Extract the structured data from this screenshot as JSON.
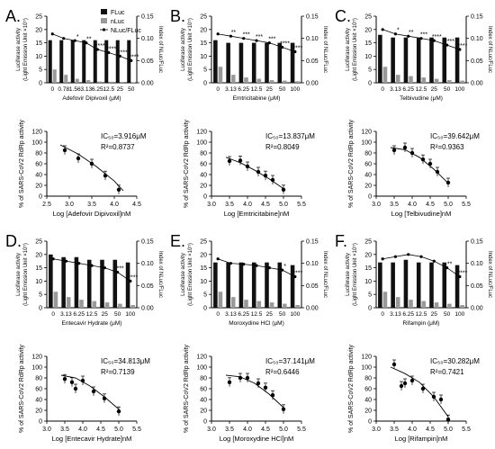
{
  "figure": {
    "legend": {
      "items": [
        "FLuc",
        "nLuc",
        "NLuc/FLuc"
      ]
    },
    "bar_axis_left_label": [
      "Luciferase activity",
      "(Light Emission Unit ×10⁵)"
    ],
    "bar_axis_right_label": "Index of NLuc/FLuc"
  },
  "panels": [
    {
      "letter": "A.",
      "xlabel_top": "Adefovir Dipivoxil (μM)",
      "concentrations": [
        "0",
        "0.78",
        "1.56",
        "3.13",
        "6.25",
        "12.5",
        "25",
        "50"
      ],
      "fluc": [
        16,
        16,
        16,
        16,
        16,
        16,
        16,
        16
      ],
      "nluc": [
        5,
        3,
        1.5,
        1,
        0.5,
        0.4,
        0.3,
        0.2
      ],
      "ratio": [
        0.11,
        0.1,
        0.095,
        0.09,
        0.075,
        0.068,
        0.06,
        0.05
      ],
      "sig": [
        "",
        "",
        "*",
        "**",
        "****",
        "****",
        "****",
        "****"
      ],
      "ic50": "IC₅₀=3.916μM",
      "r2": "R²=0.8737",
      "ylabel": "% of SARS-CoV2 RdRp activity",
      "xlabel": "Log [Adefovir Dipivoxil]nM",
      "xticks": [
        "2.5",
        "3.0",
        "3.5",
        "4.0",
        "4.5"
      ],
      "xlim": [
        2.5,
        4.5
      ],
      "points": [
        [
          2.9,
          85
        ],
        [
          3.2,
          70
        ],
        [
          3.5,
          60
        ],
        [
          3.8,
          38
        ],
        [
          4.1,
          12
        ]
      ],
      "curve": [
        [
          2.8,
          95
        ],
        [
          3.2,
          78
        ],
        [
          3.6,
          55
        ],
        [
          4.0,
          28
        ],
        [
          4.2,
          10
        ]
      ]
    },
    {
      "letter": "B.",
      "xlabel_top": "Emtricitabine (μM)",
      "concentrations": [
        "0",
        "3.13",
        "6.25",
        "12.5",
        "25",
        "50",
        "100"
      ],
      "fluc": [
        16,
        15,
        15,
        15,
        15,
        15,
        15
      ],
      "nluc": [
        6,
        3,
        2,
        1.5,
        1,
        0.8,
        0.6
      ],
      "ratio": [
        0.11,
        0.105,
        0.1,
        0.095,
        0.09,
        0.08,
        0.07
      ],
      "sig": [
        "",
        "**",
        "***",
        "***",
        "***",
        "****",
        "****"
      ],
      "ic50": "IC₅₀=13.837μM",
      "r2": "R²=0.8049",
      "ylabel": "% of SARS-CoV2 RdRp activity",
      "xlabel": "Log [Emtricitabine]nM",
      "xticks": [
        "3.0",
        "3.5",
        "4.0",
        "4.5",
        "5.0",
        "5.5"
      ],
      "xlim": [
        3.0,
        5.5
      ],
      "points": [
        [
          3.5,
          65
        ],
        [
          3.8,
          66
        ],
        [
          4.0,
          55
        ],
        [
          4.3,
          45
        ],
        [
          4.5,
          38
        ],
        [
          4.7,
          30
        ],
        [
          5.0,
          12
        ]
      ],
      "curve": [
        [
          3.4,
          72
        ],
        [
          3.8,
          62
        ],
        [
          4.2,
          48
        ],
        [
          4.6,
          32
        ],
        [
          5.0,
          14
        ]
      ]
    },
    {
      "letter": "C.",
      "xlabel_top": "Telbivudine (μM)",
      "concentrations": [
        "0",
        "3.13",
        "6.25",
        "12.5",
        "25",
        "50",
        "100"
      ],
      "fluc": [
        18,
        17,
        17,
        17,
        17,
        17,
        17
      ],
      "nluc": [
        6,
        3,
        2.5,
        2,
        1.5,
        1,
        0.8
      ],
      "ratio": [
        0.12,
        0.11,
        0.105,
        0.1,
        0.095,
        0.085,
        0.075
      ],
      "sig": [
        "",
        "*",
        "**",
        "***",
        "****",
        "****",
        "****"
      ],
      "ic50": "IC₅₀=39.642μM",
      "r2": "R²=0.9363",
      "ylabel": "% of SARS-CoV2 RdRp activity",
      "xlabel": "Log [Telbivudine]nM",
      "xticks": [
        "3.0",
        "3.5",
        "4.0",
        "4.5",
        "5.0",
        "5.5"
      ],
      "xlim": [
        3.0,
        5.5
      ],
      "points": [
        [
          3.5,
          85
        ],
        [
          3.8,
          90
        ],
        [
          4.0,
          80
        ],
        [
          4.3,
          68
        ],
        [
          4.5,
          60
        ],
        [
          4.7,
          45
        ],
        [
          5.0,
          25
        ]
      ],
      "curve": [
        [
          3.4,
          90
        ],
        [
          3.8,
          86
        ],
        [
          4.2,
          72
        ],
        [
          4.6,
          50
        ],
        [
          5.0,
          24
        ]
      ]
    },
    {
      "letter": "D.",
      "xlabel_top": "Entecavir Hydrate (μM)",
      "concentrations": [
        "0",
        "3.13",
        "6.25",
        "12.5",
        "25",
        "50",
        "100"
      ],
      "fluc": [
        20,
        19,
        19,
        18,
        18,
        18,
        17
      ],
      "nluc": [
        6,
        4,
        3,
        2.5,
        2,
        1.5,
        1
      ],
      "ratio": [
        0.11,
        0.105,
        0.1,
        0.095,
        0.09,
        0.08,
        0.06
      ],
      "sig": [
        "",
        "",
        "",
        "",
        "",
        "***",
        "****"
      ],
      "ic50": "IC₅₀=34.813μM",
      "r2": "R²=0.7139",
      "ylabel": "% of SARS-CoV2 RdRp activity",
      "xlabel": "Log [Entecavir Hydrate]nM",
      "xticks": [
        "3.0",
        "3.5",
        "4.0",
        "4.5",
        "5.0",
        "5.5"
      ],
      "xlim": [
        3.0,
        5.5
      ],
      "points": [
        [
          3.5,
          78
        ],
        [
          3.7,
          72
        ],
        [
          3.8,
          60
        ],
        [
          4.0,
          75
        ],
        [
          4.3,
          55
        ],
        [
          4.6,
          42
        ],
        [
          5.0,
          18
        ]
      ],
      "curve": [
        [
          3.4,
          85
        ],
        [
          3.8,
          80
        ],
        [
          4.2,
          65
        ],
        [
          4.6,
          45
        ],
        [
          5.0,
          22
        ]
      ]
    },
    {
      "letter": "E.",
      "xlabel_top": "Moroxydine HCl (μM)",
      "concentrations": [
        "0",
        "3.13",
        "6.25",
        "12.5",
        "25",
        "50",
        "100"
      ],
      "fluc": [
        17,
        17,
        17,
        17,
        17,
        17,
        16
      ],
      "nluc": [
        6,
        4,
        3,
        2.5,
        2,
        1.5,
        1
      ],
      "ratio": [
        0.11,
        0.1,
        0.098,
        0.095,
        0.09,
        0.085,
        0.07
      ],
      "sig": [
        "",
        "",
        "",
        "",
        "",
        "*",
        "****"
      ],
      "ic50": "IC₅₀=37.141μM",
      "r2": "R²=0.6446",
      "ylabel": "% of SARS-CoV2 RdRp activity",
      "xlabel": "Log [Moroxydine HCl]nM",
      "xticks": [
        "3.0",
        "3.5",
        "4.0",
        "4.5",
        "5.0",
        "5.5"
      ],
      "xlim": [
        3.0,
        5.5
      ],
      "points": [
        [
          3.5,
          72
        ],
        [
          3.8,
          80
        ],
        [
          4.0,
          80
        ],
        [
          4.3,
          70
        ],
        [
          4.5,
          62
        ],
        [
          4.7,
          48
        ],
        [
          5.0,
          22
        ]
      ],
      "curve": [
        [
          3.4,
          85
        ],
        [
          3.8,
          82
        ],
        [
          4.2,
          70
        ],
        [
          4.6,
          50
        ],
        [
          5.0,
          25
        ]
      ]
    },
    {
      "letter": "F.",
      "xlabel_top": "Rifampin (μM)",
      "concentrations": [
        "0",
        "3.13",
        "6.25",
        "12.5",
        "25",
        "50",
        "100"
      ],
      "fluc": [
        17,
        17,
        18,
        17,
        17,
        17,
        16
      ],
      "nluc": [
        6,
        4,
        3,
        2.5,
        2,
        1.5,
        1
      ],
      "ratio": [
        0.11,
        0.115,
        0.12,
        0.115,
        0.105,
        0.09,
        0.07
      ],
      "sig": [
        "",
        "",
        "",
        "",
        "",
        "**",
        "****"
      ],
      "ic50": "IC₅₀=30.282μM",
      "r2": "R²=0.7421",
      "ylabel": "% of SARS-CoV2 RdRp activity",
      "xlabel": "Log [Rifampin]nM",
      "xticks": [
        "3.0",
        "3.5",
        "4.0",
        "4.5",
        "5.0",
        "5.5"
      ],
      "xlim": [
        3.0,
        5.5
      ],
      "points": [
        [
          3.5,
          105
        ],
        [
          3.7,
          65
        ],
        [
          3.8,
          70
        ],
        [
          4.0,
          75
        ],
        [
          4.3,
          60
        ],
        [
          4.6,
          45
        ],
        [
          4.8,
          40
        ],
        [
          5.0,
          3
        ]
      ],
      "curve": [
        [
          3.4,
          100
        ],
        [
          3.8,
          88
        ],
        [
          4.2,
          72
        ],
        [
          4.6,
          45
        ],
        [
          5.0,
          8
        ]
      ]
    }
  ],
  "chart_data": [
    {
      "type": "bar",
      "title": "A.",
      "xlabel": "Adefovir Dipivoxil (μM)",
      "categories": [
        "0",
        "0.78",
        "1.56",
        "3.13",
        "6.25",
        "12.5",
        "25",
        "50"
      ],
      "series": [
        {
          "name": "FLuc",
          "values": [
            16,
            16,
            16,
            16,
            16,
            16,
            16,
            16
          ]
        },
        {
          "name": "nLuc",
          "values": [
            5,
            3,
            1.5,
            1,
            0.5,
            0.4,
            0.3,
            0.2
          ]
        },
        {
          "name": "NLuc/FLuc",
          "values": [
            0.11,
            0.1,
            0.095,
            0.09,
            0.075,
            0.068,
            0.06,
            0.05
          ]
        }
      ]
    },
    {
      "type": "scatter",
      "xlabel": "Log [Adefovir Dipivoxil]nM",
      "ylabel": "% of SARS-CoV2 RdRp activity",
      "x": [
        2.9,
        3.2,
        3.5,
        3.8,
        4.1
      ],
      "values": [
        85,
        70,
        60,
        38,
        12
      ],
      "ylim": [
        0,
        120
      ]
    },
    {
      "type": "bar",
      "title": "B.",
      "xlabel": "Emtricitabine (μM)",
      "categories": [
        "0",
        "3.13",
        "6.25",
        "12.5",
        "25",
        "50",
        "100"
      ],
      "series": [
        {
          "name": "FLuc",
          "values": [
            16,
            15,
            15,
            15,
            15,
            15,
            15
          ]
        },
        {
          "name": "nLuc",
          "values": [
            6,
            3,
            2,
            1.5,
            1,
            0.8,
            0.6
          ]
        },
        {
          "name": "NLuc/FLuc",
          "values": [
            0.11,
            0.105,
            0.1,
            0.095,
            0.09,
            0.08,
            0.07
          ]
        }
      ]
    },
    {
      "type": "scatter",
      "xlabel": "Log [Emtricitabine]nM",
      "ylabel": "% of SARS-CoV2 RdRp activity",
      "x": [
        3.5,
        3.8,
        4.0,
        4.3,
        4.5,
        4.7,
        5.0
      ],
      "values": [
        65,
        66,
        55,
        45,
        38,
        30,
        12
      ],
      "ylim": [
        0,
        120
      ]
    },
    {
      "type": "bar",
      "title": "C.",
      "xlabel": "Telbivudine (μM)",
      "categories": [
        "0",
        "3.13",
        "6.25",
        "12.5",
        "25",
        "50",
        "100"
      ],
      "series": [
        {
          "name": "FLuc",
          "values": [
            18,
            17,
            17,
            17,
            17,
            17,
            17
          ]
        },
        {
          "name": "nLuc",
          "values": [
            6,
            3,
            2.5,
            2,
            1.5,
            1,
            0.8
          ]
        },
        {
          "name": "NLuc/FLuc",
          "values": [
            0.12,
            0.11,
            0.105,
            0.1,
            0.095,
            0.085,
            0.075
          ]
        }
      ]
    },
    {
      "type": "scatter",
      "xlabel": "Log [Telbivudine]nM",
      "ylabel": "% of SARS-CoV2 RdRp activity",
      "x": [
        3.5,
        3.8,
        4.0,
        4.3,
        4.5,
        4.7,
        5.0
      ],
      "values": [
        85,
        90,
        80,
        68,
        60,
        45,
        25
      ],
      "ylim": [
        0,
        120
      ]
    },
    {
      "type": "bar",
      "title": "D.",
      "xlabel": "Entecavir Hydrate (μM)",
      "categories": [
        "0",
        "3.13",
        "6.25",
        "12.5",
        "25",
        "50",
        "100"
      ],
      "series": [
        {
          "name": "FLuc",
          "values": [
            20,
            19,
            19,
            18,
            18,
            18,
            17
          ]
        },
        {
          "name": "nLuc",
          "values": [
            6,
            4,
            3,
            2.5,
            2,
            1.5,
            1
          ]
        },
        {
          "name": "NLuc/FLuc",
          "values": [
            0.11,
            0.105,
            0.1,
            0.095,
            0.09,
            0.08,
            0.06
          ]
        }
      ]
    },
    {
      "type": "scatter",
      "xlabel": "Log [Entecavir Hydrate]nM",
      "ylabel": "% of SARS-CoV2 RdRp activity",
      "x": [
        3.5,
        3.7,
        3.8,
        4.0,
        4.3,
        4.6,
        5.0
      ],
      "values": [
        78,
        72,
        60,
        75,
        55,
        42,
        18
      ],
      "ylim": [
        0,
        120
      ]
    },
    {
      "type": "bar",
      "title": "E.",
      "xlabel": "Moroxydine HCl (μM)",
      "categories": [
        "0",
        "3.13",
        "6.25",
        "12.5",
        "25",
        "50",
        "100"
      ],
      "series": [
        {
          "name": "FLuc",
          "values": [
            17,
            17,
            17,
            17,
            17,
            17,
            16
          ]
        },
        {
          "name": "nLuc",
          "values": [
            6,
            4,
            3,
            2.5,
            2,
            1.5,
            1
          ]
        },
        {
          "name": "NLuc/FLuc",
          "values": [
            0.11,
            0.1,
            0.098,
            0.095,
            0.09,
            0.085,
            0.07
          ]
        }
      ]
    },
    {
      "type": "scatter",
      "xlabel": "Log [Moroxydine HCl]nM",
      "ylabel": "% of SARS-CoV2 RdRp activity",
      "x": [
        3.5,
        3.8,
        4.0,
        4.3,
        4.5,
        4.7,
        5.0
      ],
      "values": [
        72,
        80,
        80,
        70,
        62,
        48,
        22
      ],
      "ylim": [
        0,
        120
      ]
    },
    {
      "type": "bar",
      "title": "F.",
      "xlabel": "Rifampin (μM)",
      "categories": [
        "0",
        "3.13",
        "6.25",
        "12.5",
        "25",
        "50",
        "100"
      ],
      "series": [
        {
          "name": "FLuc",
          "values": [
            17,
            17,
            18,
            17,
            17,
            17,
            16
          ]
        },
        {
          "name": "nLuc",
          "values": [
            6,
            4,
            3,
            2.5,
            2,
            1.5,
            1
          ]
        },
        {
          "name": "NLuc/FLuc",
          "values": [
            0.11,
            0.115,
            0.12,
            0.115,
            0.105,
            0.09,
            0.07
          ]
        }
      ]
    },
    {
      "type": "scatter",
      "xlabel": "Log [Rifampin]nM",
      "ylabel": "% of SARS-CoV2 RdRp activity",
      "x": [
        3.5,
        3.7,
        3.8,
        4.0,
        4.3,
        4.6,
        4.8,
        5.0
      ],
      "values": [
        105,
        65,
        70,
        75,
        60,
        45,
        40,
        3
      ],
      "ylim": [
        0,
        120
      ]
    }
  ]
}
